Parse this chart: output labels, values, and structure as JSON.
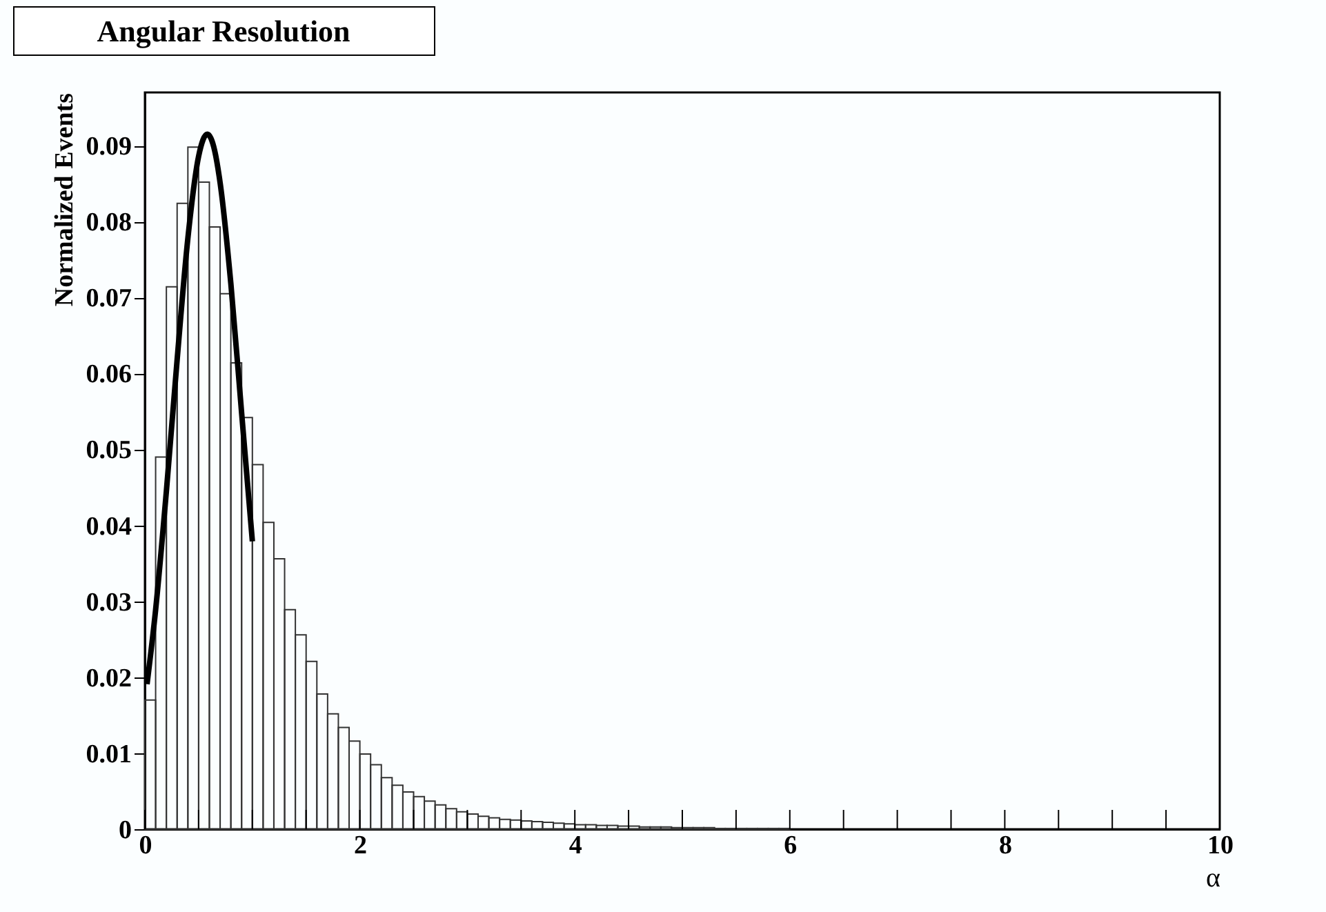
{
  "chart_data": {
    "type": "histogram",
    "title": "Angular Resolution",
    "xlabel": "α",
    "ylabel": "Normalized Events",
    "xlim": [
      0,
      10
    ],
    "ylim": [
      0,
      0.097
    ],
    "xticks": [
      0,
      {
        "value": 0.5,
        "label": null
      },
      {
        "value": 1,
        "label": null
      },
      {
        "value": 1.5,
        "label": null
      },
      2,
      {
        "value": 2.5,
        "label": null
      },
      {
        "value": 3,
        "label": null
      },
      {
        "value": 3.5,
        "label": null
      },
      4,
      {
        "value": 4.5,
        "label": null
      },
      {
        "value": 5,
        "label": null
      },
      {
        "value": 5.5,
        "label": null
      },
      6,
      {
        "value": 6.5,
        "label": null
      },
      {
        "value": 7,
        "label": null
      },
      {
        "value": 7.5,
        "label": null
      },
      8,
      {
        "value": 8.5,
        "label": null
      },
      {
        "value": 9,
        "label": null
      },
      {
        "value": 9.5,
        "label": null
      },
      10
    ],
    "yticks": [
      0,
      0.01,
      0.02,
      0.03,
      0.04,
      0.05,
      0.06,
      0.07,
      0.08,
      0.09
    ],
    "grid": false,
    "series": [
      {
        "type": "histogram",
        "color": "#333333",
        "bins": [
          0,
          0.1,
          0.2,
          0.3,
          0.4,
          0.5,
          0.6,
          0.7,
          0.8,
          0.9,
          1.0,
          1.1,
          1.2,
          1.3,
          1.4,
          1.5,
          1.6,
          1.7,
          1.8,
          1.9,
          2.0,
          2.1,
          2.2,
          2.3,
          2.4,
          2.5,
          2.6,
          2.7,
          2.8,
          2.9,
          3.0,
          3.1,
          3.2,
          3.3,
          3.4,
          3.5,
          3.6,
          3.7,
          3.8,
          3.9,
          4.0,
          4.1,
          4.2,
          4.3,
          4.4,
          4.5,
          4.6,
          4.7,
          4.8,
          4.9,
          5.0,
          5.1,
          5.2,
          5.3,
          5.4,
          5.5,
          5.6,
          5.7,
          5.8,
          5.9,
          6.0
        ],
        "values": [
          0.017,
          0.049,
          0.0714,
          0.0824,
          0.0898,
          0.0852,
          0.0793,
          0.0705,
          0.0614,
          0.0542,
          0.048,
          0.0404,
          0.0356,
          0.0289,
          0.0256,
          0.0221,
          0.0178,
          0.0152,
          0.0134,
          0.0116,
          0.0099,
          0.0085,
          0.0068,
          0.0058,
          0.0049,
          0.0043,
          0.0037,
          0.0032,
          0.0027,
          0.0023,
          0.002,
          0.0017,
          0.0015,
          0.0013,
          0.0012,
          0.0011,
          0.001,
          0.0009,
          0.0008,
          0.0007,
          0.0006,
          0.0006,
          0.0005,
          0.0005,
          0.0004,
          0.0004,
          0.0003,
          0.0003,
          0.0003,
          0.0002,
          0.0002,
          0.0002,
          0.0002,
          0.0001,
          0.0001,
          0.0001,
          0.0001,
          0.0001,
          0.0001,
          0.0001
        ]
      },
      {
        "type": "line",
        "color": "#000000",
        "x": [
          0.02,
          0.1,
          0.2,
          0.3,
          0.4,
          0.5,
          0.58,
          0.65,
          0.7,
          0.8,
          0.9,
          1.0
        ],
        "values": [
          0.0191,
          0.0289,
          0.0445,
          0.0618,
          0.0778,
          0.0886,
          0.0915,
          0.0893,
          0.0851,
          0.0718,
          0.0548,
          0.0379
        ]
      }
    ]
  }
}
